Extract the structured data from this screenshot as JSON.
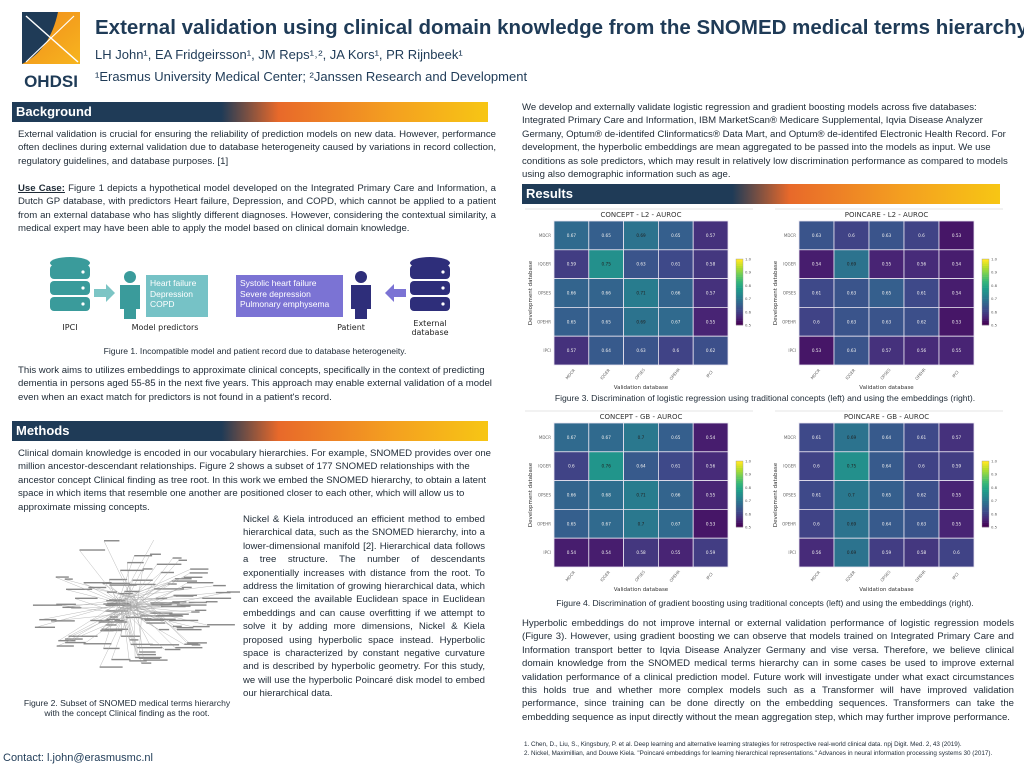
{
  "header": {
    "logo_text": "OHDSI",
    "title": "External validation using clinical domain knowledge from the SNOMED medical terms hierarchy",
    "authors": "LH John¹, EA Fridgeirsson¹, JM Reps¹˒², JA Kors¹, PR Rijnbeek¹",
    "affiliations": "¹Erasmus University Medical Center; ²Janssen Research and Development"
  },
  "background": {
    "heading": "Background",
    "p1": "External validation is crucial for ensuring the reliability of prediction models on new data. However, performance often declines during external validation due to database heterogeneity caused by variations in record collection, regulatory guidelines, and database purposes. [1]",
    "usecase_label": "Use Case:",
    "usecase": " Figure 1 depicts a hypothetical model developed on the Integrated Primary Care and Information, a Dutch GP database, with predictors Heart failure, Depression, and COPD, which cannot be applied to a patient from an external database who has slightly different diagnoses. However, considering the contextual similarity, a medical expert may have been able to apply the model based on clinical domain knowledge.",
    "p3": "This work aims to utilizes embeddings to approximate clinical concepts, specifically in the context of predicting dementia in persons aged 55-85 in the next five years. This approach may enable external validation of a model even when an exact match for predictors is not found in a patient's record."
  },
  "figure1": {
    "model_predictors": [
      "Heart failure",
      "Depression",
      "COPD"
    ],
    "patient_conditions": [
      "Systolic heart failure",
      "Severe depression",
      "Pulmonary emphysema"
    ],
    "label_ipci": "IPCI",
    "label_model": "Model predictors",
    "label_patient": "Patient",
    "label_external": "External database",
    "caption": "Figure 1. Incompatible model and patient record due to database heterogeneity.",
    "colors": {
      "teal": "#3a9b9b",
      "purple": "#2e2e7a"
    }
  },
  "methods": {
    "heading": "Methods",
    "p1": "Clinical domain knowledge is encoded in our vocabulary hierarchies. For example, SNOMED provides over one million ancestor-descendant relationships. Figure 2 shows a subset of 177 SNOMED relationships with the ancestor concept Clinical finding as tree root. In this work we embed the SNOMED hierarchy, to obtain a latent space in which items that resemble one another are positioned closer to each other, which will allow us to approximate missing concepts.",
    "p2": "Nickel & Kiela introduced an efficient method to embed hierarchical data, such as the SNOMED hierarchy, into a lower-dimensional manifold [2]. Hierarchical data follows a tree structure. The number of descendants exponentially increases with distance from the root. To address the limitation of growing hierarchical data, which can exceed the available Euclidean space in Euclidean embeddings and can cause overfitting if we attempt to solve it by adding more dimensions, Nickel & Kiela proposed using hyperbolic space instead. Hyperbolic space is characterized by constant negative curvature and is described by hyperbolic geometry. For this study, we will use the hyperbolic Poincaré disk model to embed our hierarchical data.",
    "figure2_caption_1": "Figure 2. Subset of SNOMED medical terms hierarchy",
    "figure2_caption_2": "with the concept Clinical finding as the root."
  },
  "contact": "Contact:  l.john@erasmusmc.nl",
  "intro_right": "We develop and externally validate logistic regression and gradient boosting models across five databases: Integrated Primary Care and Information, IBM MarketScan® Medicare Supplemental, Iqvia Disease Analyzer Germany, Optum® de-identifed Clinformatics® Data Mart, and Optum® de-identifed Electronic Health Record. For development, the hyperbolic embeddings are mean aggregated to be passed into the models as input. We use conditions as sole predictors, which may result in relatively low discrimination performance as compared to models using also demographic information such as age.",
  "results": {
    "heading": "Results",
    "figure3_caption": "Figure 3. Discrimination of logistic regression using traditional concepts (left) and using the embeddings (right).",
    "figure4_caption": "Figure 4. Discrimination of gradient boosting using traditional concepts (left) and using the embeddings (right).",
    "conclusion": "Hyperbolic embeddings do not improve internal or external validation performance of logistic regression models (Figure 3). However, using gradient boosting we can observe that models trained on Integrated Primary Care and Information transport better to Iqvia Disease Analyzer Germany and vise versa. Therefore, we believe clinical domain knowledge from the SNOMED medical terms hierarchy can in some cases be used to improve external validation performance of a clinical prediction model. Future work will investigate under what exact circumstances this holds true and whether more complex models such as a Transformer will have improved validation performance, since training can be done directly on the embedding sequences. Transformers can take the embedding sequence as input directly without the mean aggregation step, which may further improve performance."
  },
  "references": [
    "1.  Chen, D., Liu, S., Kingsbury, P. et al. Deep learning and alternative learning strategies for retrospective real-world clinical data. npj Digit. Med. 2, 43 (2019).",
    "2.  Nickel, Maximillian, and Douwe Kiela. \"Poincaré embeddings for learning hierarchical representations.\" Advances in neural information processing systems 30 (2017)."
  ],
  "chart_data": [
    {
      "type": "heatmap",
      "title": "CONCEPT - L2 - AUROC",
      "xlabel": "Validation database",
      "ylabel": "Development database",
      "x": [
        "MDCR",
        "IQGER",
        "OPSES",
        "OPEHR",
        "IPCI"
      ],
      "y": [
        "MDCR",
        "IQGER",
        "OPSES",
        "OPEHR",
        "IPCI"
      ],
      "colorbar": {
        "range": [
          0.5,
          1.0
        ],
        "ticks": [
          0.5,
          0.6,
          0.7,
          0.8,
          0.9,
          1.0
        ],
        "colormap": "viridis"
      },
      "values": [
        [
          0.67,
          0.65,
          0.69,
          0.65,
          0.57
        ],
        [
          0.59,
          0.75,
          0.63,
          0.61,
          0.58
        ],
        [
          0.66,
          0.66,
          0.71,
          0.66,
          0.57
        ],
        [
          0.65,
          0.65,
          0.69,
          0.67,
          0.55
        ],
        [
          0.57,
          0.64,
          0.63,
          0.6,
          0.62
        ]
      ]
    },
    {
      "type": "heatmap",
      "title": "POINCARE - L2 - AUROC",
      "xlabel": "Validation database",
      "ylabel": "Development database",
      "x": [
        "MDCR",
        "IQGER",
        "OPSES",
        "OPEHR",
        "IPCI"
      ],
      "y": [
        "MDCR",
        "IQGER",
        "OPSES",
        "OPEHR",
        "IPCI"
      ],
      "colorbar": {
        "range": [
          0.5,
          1.0
        ],
        "ticks": [
          0.5,
          0.6,
          0.7,
          0.8,
          0.9,
          1.0
        ],
        "colormap": "viridis"
      },
      "values": [
        [
          0.63,
          0.6,
          0.63,
          0.6,
          0.53
        ],
        [
          0.54,
          0.69,
          0.55,
          0.56,
          0.54
        ],
        [
          0.61,
          0.63,
          0.65,
          0.61,
          0.54
        ],
        [
          0.6,
          0.63,
          0.63,
          0.62,
          0.53
        ],
        [
          0.53,
          0.63,
          0.57,
          0.56,
          0.55
        ]
      ]
    },
    {
      "type": "heatmap",
      "title": "CONCEPT - GB - AUROC",
      "xlabel": "Validation database",
      "ylabel": "Development database",
      "x": [
        "MDCR",
        "IQGER",
        "OPSES",
        "OPEHR",
        "IPCI"
      ],
      "y": [
        "MDCR",
        "IQGER",
        "OPSES",
        "OPEHR",
        "IPCI"
      ],
      "colorbar": {
        "range": [
          0.5,
          1.0
        ],
        "ticks": [
          0.5,
          0.6,
          0.7,
          0.8,
          0.9,
          1.0
        ],
        "colormap": "viridis"
      },
      "values": [
        [
          0.67,
          0.67,
          0.7,
          0.65,
          0.54
        ],
        [
          0.6,
          0.76,
          0.64,
          0.61,
          0.56
        ],
        [
          0.66,
          0.68,
          0.71,
          0.66,
          0.55
        ],
        [
          0.65,
          0.67,
          0.7,
          0.67,
          0.53
        ],
        [
          0.54,
          0.54,
          0.58,
          0.55,
          0.59
        ]
      ]
    },
    {
      "type": "heatmap",
      "title": "POINCARE - GB - AUROC",
      "xlabel": "Validation database",
      "ylabel": "Development database",
      "x": [
        "MDCR",
        "IQGER",
        "OPSES",
        "OPEHR",
        "IPCI"
      ],
      "y": [
        "MDCR",
        "IQGER",
        "OPSES",
        "OPEHR",
        "IPCI"
      ],
      "colorbar": {
        "range": [
          0.5,
          1.0
        ],
        "ticks": [
          0.5,
          0.6,
          0.7,
          0.8,
          0.9,
          1.0
        ],
        "colormap": "viridis"
      },
      "values": [
        [
          0.61,
          0.69,
          0.64,
          0.61,
          0.57
        ],
        [
          0.6,
          0.75,
          0.64,
          0.6,
          0.59
        ],
        [
          0.61,
          0.7,
          0.65,
          0.62,
          0.55
        ],
        [
          0.6,
          0.69,
          0.64,
          0.63,
          0.55
        ],
        [
          0.56,
          0.69,
          0.59,
          0.58,
          0.6
        ]
      ]
    }
  ]
}
